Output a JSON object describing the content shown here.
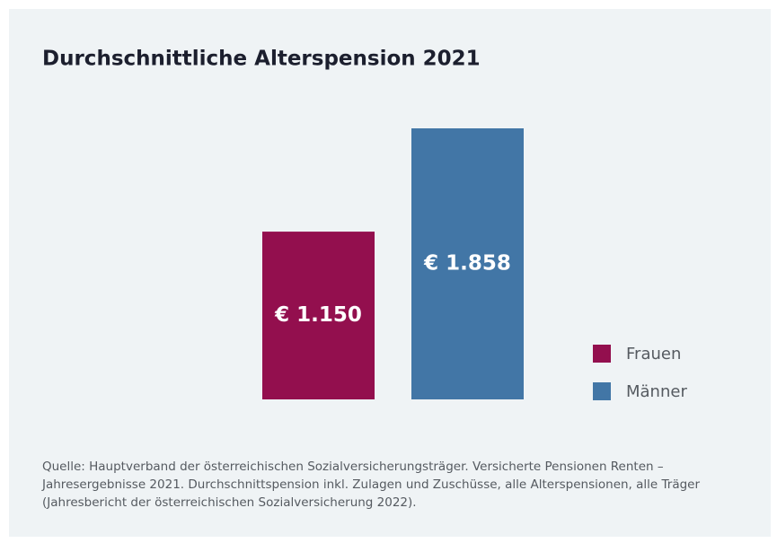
{
  "chart_data": {
    "type": "bar",
    "title": "Durchschnittliche Alterspension 2021",
    "categories": [
      null
    ],
    "series": [
      {
        "name": "Frauen",
        "color": "#930f4e",
        "values": [
          1150
        ],
        "value_labels": [
          "€ 1.150"
        ]
      },
      {
        "name": "Männer",
        "color": "#4276a6",
        "values": [
          1858
        ],
        "value_labels": [
          "€ 1.858"
        ]
      }
    ],
    "source": "Quelle: Hauptverband der österreichischen Sozialversicherungsträger. Versicherte Pensionen Renten – Jahresergebnisse 2021. Durchschnittspension inkl. Zulagen und Zuschüsse, alle Alterspensionen, alle Träger (Jahresbericht der österreichischen Sozialversicherung 2022)."
  }
}
